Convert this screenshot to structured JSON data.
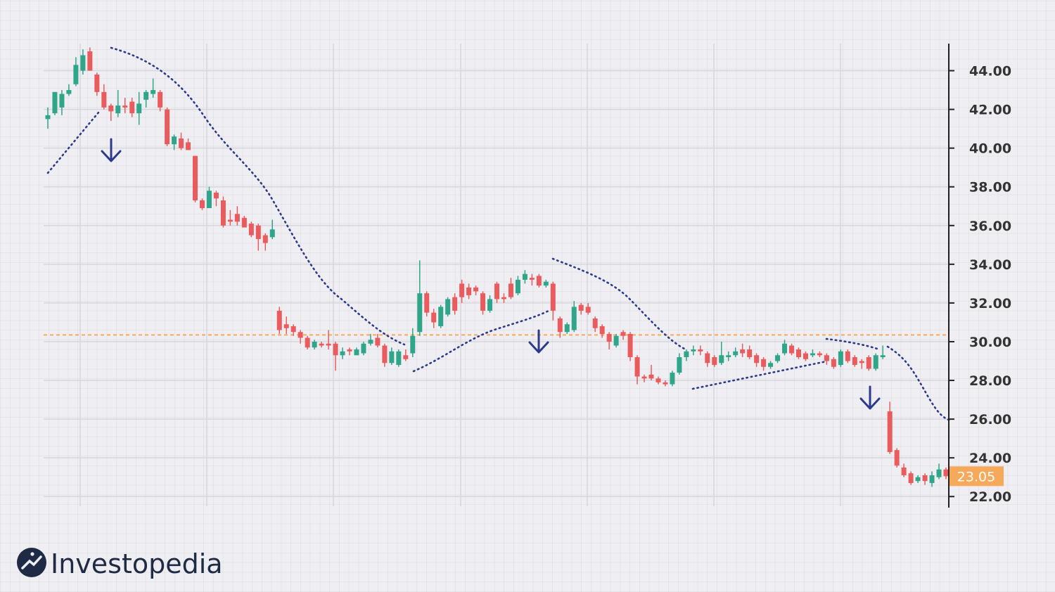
{
  "chart_data": {
    "type": "candlestick",
    "open": [
      41.5,
      41.8,
      42.1,
      42.8,
      43.3,
      44.0,
      45.0,
      43.8,
      42.9,
      42.2,
      41.8,
      42.2,
      42.4,
      41.8,
      42.5,
      42.8,
      42.9,
      42.0,
      40.2,
      40.5,
      40.3,
      39.6,
      37.3,
      36.9,
      37.7,
      37.3,
      36.3,
      36.6,
      36.4,
      36.1,
      36.0,
      35.5,
      35.4,
      31.6,
      30.9,
      30.8,
      30.5,
      30.2,
      29.7,
      29.9,
      29.9,
      29.9,
      29.3,
      29.6,
      29.3,
      29.4,
      29.9,
      30.2,
      29.8,
      28.9,
      28.8,
      29.3,
      29.4,
      30.5,
      32.5,
      31.5,
      30.8,
      31.4,
      32.3,
      33.0,
      32.8,
      32.8,
      32.5,
      31.6,
      33.0,
      32.3,
      33.0,
      32.5,
      33.2,
      33.3,
      33.4,
      32.9,
      33.0,
      31.2,
      30.5,
      30.6,
      31.9,
      31.8,
      31.2,
      30.8,
      30.4,
      29.8,
      30.5,
      30.4,
      29.2,
      28.2,
      28.3,
      28.1,
      27.9,
      27.8,
      28.4,
      29.2,
      29.5,
      29.6,
      29.4,
      29.2,
      28.9,
      29.2,
      29.3,
      29.6,
      29.6,
      29.3,
      29.1,
      28.7,
      29.0,
      29.4,
      29.8,
      29.6,
      29.4,
      29.3,
      29.4,
      29.3,
      29.1,
      28.8,
      29.5,
      29.2,
      29.0,
      29.2,
      28.6,
      29.2,
      26.4,
      24.4,
      23.5,
      23.2,
      22.8,
      23.1,
      22.7,
      23.0,
      23.4
    ],
    "high": [
      42.1,
      42.9,
      43.0,
      43.3,
      44.7,
      45.1,
      45.2,
      43.9,
      43.3,
      42.3,
      43.0,
      42.6,
      42.6,
      42.9,
      43.0,
      43.6,
      43.0,
      42.1,
      40.7,
      40.8,
      40.5,
      39.6,
      37.4,
      38.0,
      37.8,
      37.5,
      36.8,
      37.0,
      36.5,
      36.2,
      36.1,
      35.6,
      36.3,
      31.8,
      31.3,
      30.9,
      30.6,
      30.3,
      30.1,
      30.0,
      30.6,
      30.0,
      29.7,
      29.7,
      29.7,
      30.0,
      30.4,
      30.4,
      29.9,
      29.7,
      29.6,
      29.6,
      30.7,
      34.2,
      32.6,
      31.7,
      31.9,
      32.3,
      32.5,
      33.2,
      33.0,
      32.9,
      32.6,
      32.4,
      33.1,
      32.5,
      33.3,
      33.4,
      33.7,
      33.5,
      33.5,
      33.2,
      33.1,
      31.3,
      31.0,
      32.1,
      32.0,
      32.0,
      31.3,
      30.9,
      30.5,
      30.4,
      30.6,
      30.5,
      29.3,
      28.3,
      28.8,
      28.2,
      28.0,
      28.5,
      29.4,
      29.6,
      29.8,
      29.8,
      29.5,
      29.3,
      30.0,
      29.5,
      29.7,
      29.9,
      29.8,
      29.4,
      29.2,
      29.0,
      29.4,
      30.1,
      29.9,
      29.7,
      29.5,
      29.6,
      29.5,
      29.4,
      29.2,
      29.6,
      29.6,
      29.3,
      29.1,
      29.3,
      29.4,
      29.8,
      26.9,
      24.5,
      23.7,
      23.3,
      23.1,
      23.2,
      23.3,
      23.7,
      23.5
    ],
    "low": [
      41.0,
      41.7,
      41.7,
      42.7,
      43.2,
      43.8,
      44.0,
      42.7,
      42.0,
      41.4,
      41.6,
      41.8,
      41.6,
      41.2,
      42.1,
      42.6,
      41.9,
      40.1,
      39.9,
      39.9,
      39.9,
      37.2,
      36.8,
      36.9,
      37.0,
      35.9,
      36.0,
      36.0,
      35.9,
      35.4,
      34.7,
      34.7,
      35.3,
      30.4,
      30.4,
      30.3,
      29.9,
      29.6,
      29.6,
      29.7,
      29.6,
      28.5,
      29.1,
      29.3,
      29.3,
      29.3,
      29.8,
      29.7,
      28.7,
      28.8,
      28.7,
      29.0,
      29.2,
      30.3,
      31.3,
      30.7,
      30.7,
      31.3,
      31.4,
      32.0,
      32.2,
      32.4,
      31.4,
      31.5,
      32.0,
      32.0,
      32.2,
      32.4,
      33.0,
      32.9,
      32.8,
      32.8,
      31.1,
      30.2,
      30.4,
      30.5,
      31.4,
      31.4,
      30.5,
      30.2,
      29.6,
      29.7,
      30.1,
      29.0,
      27.8,
      27.9,
      28.0,
      27.8,
      27.7,
      27.7,
      28.3,
      29.0,
      29.3,
      29.3,
      28.7,
      28.7,
      28.8,
      29.0,
      29.2,
      29.2,
      29.1,
      28.7,
      28.5,
      28.6,
      28.9,
      29.3,
      29.3,
      29.1,
      29.0,
      29.2,
      29.2,
      28.8,
      28.6,
      28.7,
      28.9,
      28.7,
      28.6,
      28.5,
      28.5,
      29.1,
      24.2,
      23.5,
      23.0,
      22.6,
      22.7,
      22.6,
      22.5,
      22.9,
      22.9
    ],
    "close": [
      41.7,
      42.9,
      42.8,
      43.0,
      44.3,
      44.8,
      44.0,
      42.9,
      42.1,
      41.9,
      42.2,
      42.1,
      41.8,
      42.3,
      42.9,
      43.0,
      42.1,
      40.2,
      40.6,
      40.0,
      39.9,
      37.3,
      36.9,
      37.8,
      37.4,
      36.0,
      36.2,
      36.2,
      35.9,
      35.5,
      35.3,
      35.1,
      35.8,
      30.6,
      30.7,
      30.5,
      30.2,
      29.7,
      30.0,
      29.8,
      29.8,
      29.3,
      29.5,
      29.5,
      29.6,
      29.9,
      30.1,
      29.8,
      28.9,
      29.5,
      29.5,
      29.1,
      30.3,
      32.5,
      31.5,
      31.0,
      31.8,
      32.2,
      31.6,
      32.3,
      32.4,
      32.6,
      31.6,
      32.2,
      32.2,
      32.2,
      32.3,
      33.2,
      33.5,
      33.2,
      32.9,
      33.1,
      31.6,
      30.5,
      30.9,
      31.8,
      31.6,
      31.5,
      30.7,
      30.4,
      30.0,
      30.3,
      30.3,
      29.2,
      28.2,
      28.1,
      28.1,
      27.9,
      27.8,
      28.4,
      29.2,
      29.5,
      29.6,
      29.5,
      28.9,
      28.8,
      29.3,
      29.3,
      29.5,
      29.4,
      29.2,
      28.9,
      28.7,
      28.9,
      29.3,
      29.9,
      29.4,
      29.2,
      29.1,
      29.4,
      29.3,
      29.0,
      28.7,
      29.5,
      29.0,
      28.8,
      28.9,
      28.6,
      29.3,
      29.3,
      24.3,
      23.6,
      23.1,
      22.7,
      23.0,
      22.8,
      23.1,
      23.4,
      23.05
    ],
    "up_color": "#2fa58a",
    "down_color": "#ea5b5d",
    "ylim": [
      21.5,
      45.4
    ],
    "yticks": [
      {
        "value": 22,
        "label": "22.00"
      },
      {
        "value": 24,
        "label": "24.00"
      },
      {
        "value": 26,
        "label": "26.00"
      },
      {
        "value": 28,
        "label": "28.00"
      },
      {
        "value": 30,
        "label": "30.00"
      },
      {
        "value": 32,
        "label": "32.00"
      },
      {
        "value": 34,
        "label": "34.00"
      },
      {
        "value": 36,
        "label": "36.00"
      },
      {
        "value": 38,
        "label": "38.00"
      },
      {
        "value": 40,
        "label": "40.00"
      },
      {
        "value": 42,
        "label": "42.00"
      },
      {
        "value": 44,
        "label": "44.00"
      }
    ],
    "grid": true,
    "reference_line": 30.35,
    "reference_color": "#f6a85b",
    "last_price": 23.05
  },
  "brand": {
    "name": "Investopedia"
  }
}
